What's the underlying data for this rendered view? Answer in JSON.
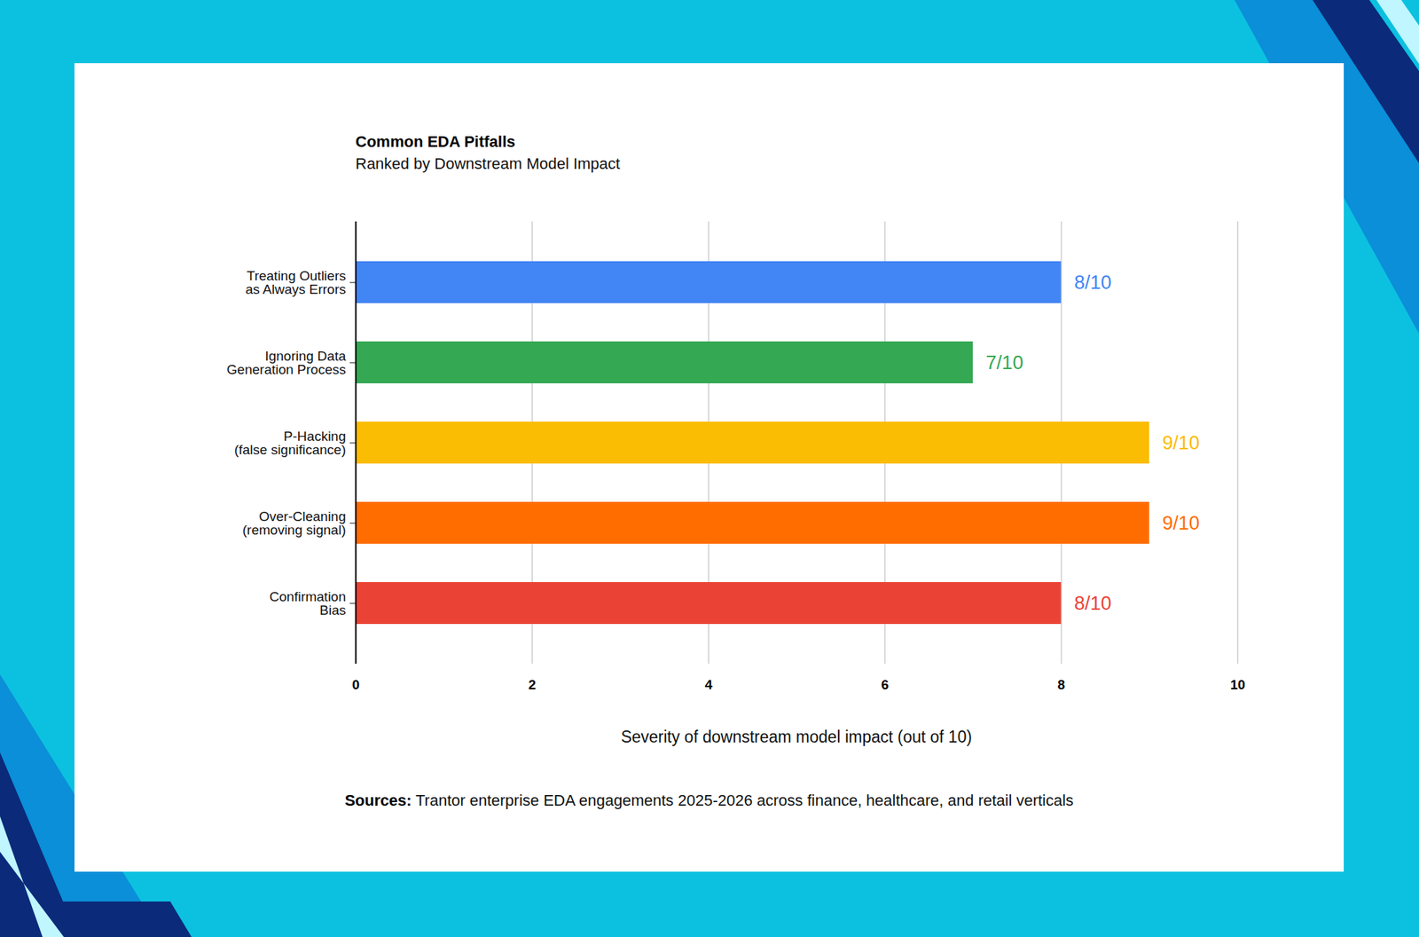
{
  "chart_data": {
    "type": "bar",
    "title": "Common EDA Pitfalls",
    "subtitle": "Ranked by Downstream Model Impact",
    "orientation": "horizontal",
    "categories": [
      "Treating Outliers\nas Always Errors",
      "Ignoring Data\nGeneration Process",
      "P-Hacking\n(false significance)",
      "Over-Cleaning\n(removing signal)",
      "Confirmation\nBias"
    ],
    "values": [
      8,
      7,
      9,
      9,
      8
    ],
    "value_labels": [
      "8/10",
      "7/10",
      "9/10",
      "9/10",
      "8/10"
    ],
    "colors": [
      "#4285f4",
      "#34a853",
      "#fbbc04",
      "#ff6d01",
      "#ea4335"
    ],
    "xlim": [
      0,
      10
    ],
    "xticks": [
      0,
      2,
      4,
      6,
      8,
      10
    ],
    "xlabel": "Severity of downstream model impact (out of 10)",
    "grid": true,
    "data_labels": true,
    "caption_label": "Sources:",
    "caption": "Trantor enterprise EDA engagements 2025-2026 across finance, healthcare, and retail verticals"
  }
}
